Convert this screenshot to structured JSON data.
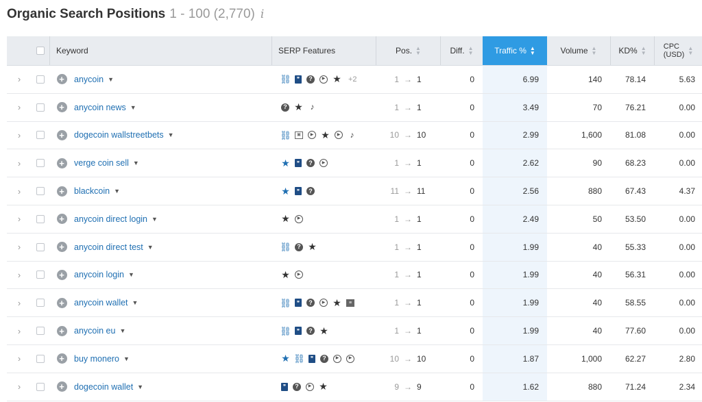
{
  "header": {
    "title": "Organic Search Positions",
    "range": "1 - 100 (2,770)",
    "info_icon": "i"
  },
  "columns": {
    "keyword": "Keyword",
    "serp": "SERP Features",
    "pos": "Pos.",
    "diff": "Diff.",
    "traffic": "Traffic %",
    "volume": "Volume",
    "kd": "KD%",
    "cpc": "CPC (USD)",
    "cpc_line1": "CPC",
    "cpc_line2": "(USD)"
  },
  "symbols": {
    "expand": "›",
    "plus": "+",
    "caret": "▼",
    "arrow": "→",
    "sort_up": "▲",
    "sort_down": "▼"
  },
  "rows": [
    {
      "keyword": "anycoin",
      "serp": [
        "link-icon",
        "featured-snippet-icon",
        "people-also-ask-icon",
        "video-icon",
        "star-icon"
      ],
      "more": "+2",
      "pos_from": "1",
      "pos_to": "1",
      "diff": "0",
      "traffic": "6.99",
      "volume": "140",
      "kd": "78.14",
      "cpc": "5.63"
    },
    {
      "keyword": "anycoin news",
      "serp": [
        "people-also-ask-icon",
        "star-icon",
        "twitter-icon"
      ],
      "more": "",
      "pos_from": "1",
      "pos_to": "1",
      "diff": "0",
      "traffic": "3.49",
      "volume": "70",
      "kd": "76.21",
      "cpc": "0.00"
    },
    {
      "keyword": "dogecoin wallstreetbets",
      "serp": [
        "link-icon",
        "image-icon",
        "video-icon",
        "star-icon",
        "video-icon",
        "twitter-icon"
      ],
      "more": "",
      "pos_from": "10",
      "pos_to": "10",
      "diff": "0",
      "traffic": "2.99",
      "volume": "1,600",
      "kd": "81.08",
      "cpc": "0.00"
    },
    {
      "keyword": "verge coin sell",
      "serp": [
        "star-blue-icon",
        "featured-snippet-icon",
        "people-also-ask-icon",
        "video-icon"
      ],
      "more": "",
      "pos_from": "1",
      "pos_to": "1",
      "diff": "0",
      "traffic": "2.62",
      "volume": "90",
      "kd": "68.23",
      "cpc": "0.00"
    },
    {
      "keyword": "blackcoin",
      "serp": [
        "star-blue-icon",
        "featured-snippet-icon",
        "people-also-ask-icon"
      ],
      "more": "",
      "pos_from": "11",
      "pos_to": "11",
      "diff": "0",
      "traffic": "2.56",
      "volume": "880",
      "kd": "67.43",
      "cpc": "4.37"
    },
    {
      "keyword": "anycoin direct login",
      "serp": [
        "star-icon",
        "video-icon"
      ],
      "more": "",
      "pos_from": "1",
      "pos_to": "1",
      "diff": "0",
      "traffic": "2.49",
      "volume": "50",
      "kd": "53.50",
      "cpc": "0.00"
    },
    {
      "keyword": "anycoin direct test",
      "serp": [
        "link-icon",
        "people-also-ask-icon",
        "star-icon"
      ],
      "more": "",
      "pos_from": "1",
      "pos_to": "1",
      "diff": "0",
      "traffic": "1.99",
      "volume": "40",
      "kd": "55.33",
      "cpc": "0.00"
    },
    {
      "keyword": "anycoin login",
      "serp": [
        "star-icon",
        "video-icon"
      ],
      "more": "",
      "pos_from": "1",
      "pos_to": "1",
      "diff": "0",
      "traffic": "1.99",
      "volume": "40",
      "kd": "56.31",
      "cpc": "0.00"
    },
    {
      "keyword": "anycoin wallet",
      "serp": [
        "link-icon",
        "featured-snippet-icon",
        "people-also-ask-icon",
        "video-icon",
        "star-icon",
        "news-icon"
      ],
      "more": "",
      "pos_from": "1",
      "pos_to": "1",
      "diff": "0",
      "traffic": "1.99",
      "volume": "40",
      "kd": "58.55",
      "cpc": "0.00"
    },
    {
      "keyword": "anycoin eu",
      "serp": [
        "link-blue-icon",
        "featured-snippet-icon",
        "people-also-ask-icon",
        "star-icon"
      ],
      "more": "",
      "pos_from": "1",
      "pos_to": "1",
      "diff": "0",
      "traffic": "1.99",
      "volume": "40",
      "kd": "77.60",
      "cpc": "0.00"
    },
    {
      "keyword": "buy monero",
      "serp": [
        "star-blue-icon",
        "link-icon",
        "featured-snippet-icon",
        "people-also-ask-icon",
        "video-icon",
        "video-icon"
      ],
      "more": "",
      "pos_from": "10",
      "pos_to": "10",
      "diff": "0",
      "traffic": "1.87",
      "volume": "1,000",
      "kd": "62.27",
      "cpc": "2.80"
    },
    {
      "keyword": "dogecoin wallet",
      "serp": [
        "featured-snippet-icon",
        "people-also-ask-icon",
        "video-icon",
        "star-icon"
      ],
      "more": "",
      "pos_from": "9",
      "pos_to": "9",
      "diff": "0",
      "traffic": "1.62",
      "volume": "880",
      "kd": "71.24",
      "cpc": "2.34"
    }
  ],
  "colors": {
    "link": "#1f6fb2",
    "active_sort": "#2f9be3",
    "traffic_col_bg": "#eef5fc",
    "header_bg": "#e9ecf0"
  }
}
